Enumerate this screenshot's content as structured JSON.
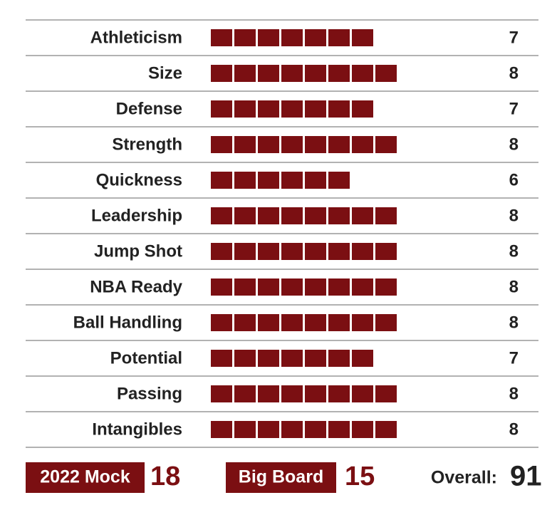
{
  "rows": [
    {
      "label": "Athleticism",
      "value": 7
    },
    {
      "label": "Size",
      "value": 8
    },
    {
      "label": "Defense",
      "value": 7
    },
    {
      "label": "Strength",
      "value": 8
    },
    {
      "label": "Quickness",
      "value": 6
    },
    {
      "label": "Leadership",
      "value": 8
    },
    {
      "label": "Jump Shot",
      "value": 8
    },
    {
      "label": "NBA Ready",
      "value": 8
    },
    {
      "label": "Ball Handling",
      "value": 8
    },
    {
      "label": "Potential",
      "value": 7
    },
    {
      "label": "Passing",
      "value": 8
    },
    {
      "label": "Intangibles",
      "value": 8
    }
  ],
  "footer": {
    "mock": {
      "label": "2022 Mock",
      "value": 18
    },
    "big_board": {
      "label": "Big Board",
      "value": 15
    },
    "overall": {
      "label": "Overall:",
      "value": 91
    }
  }
}
